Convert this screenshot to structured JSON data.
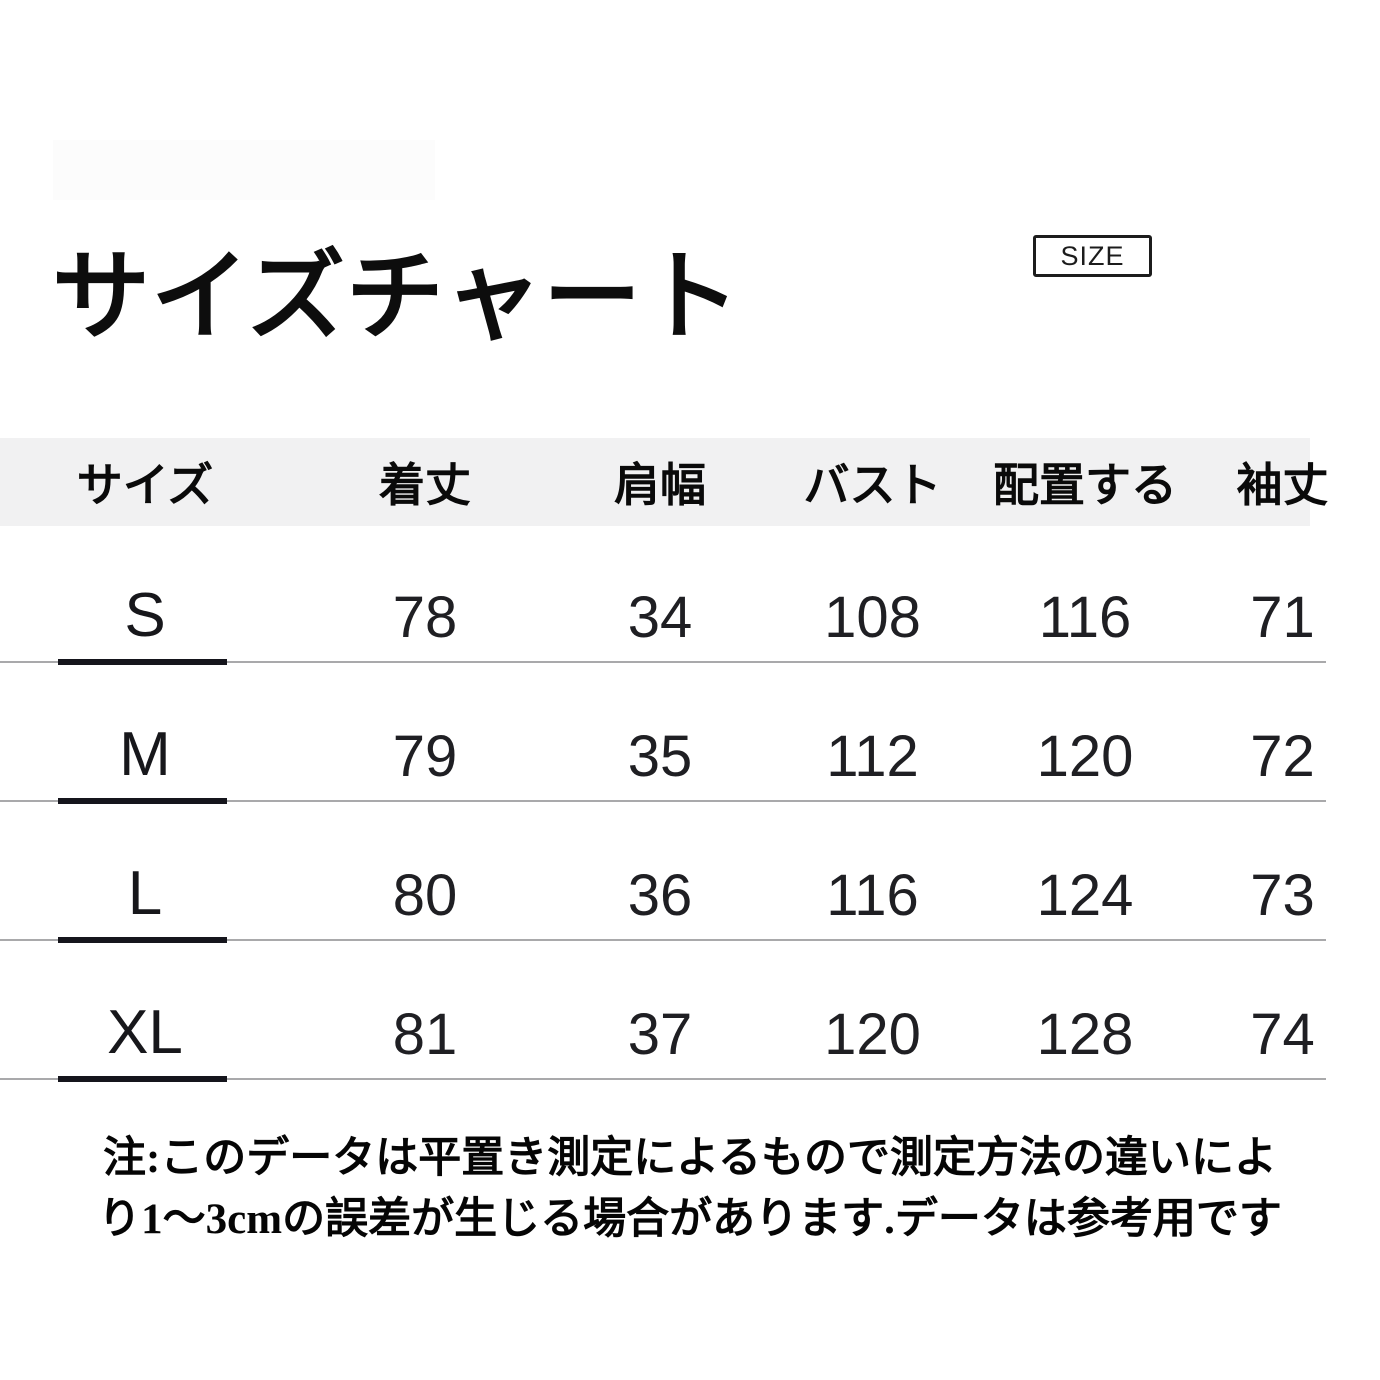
{
  "page": {
    "title": "サイズチャート",
    "size_badge_label": "SIZE"
  },
  "table": {
    "headers": [
      "サイズ",
      "着丈",
      "肩幅",
      "バスト",
      "配置する",
      "袖丈"
    ],
    "rows": [
      {
        "size": "S",
        "values": [
          "78",
          "34",
          "108",
          "116",
          "71"
        ]
      },
      {
        "size": "M",
        "values": [
          "79",
          "35",
          "112",
          "120",
          "72"
        ]
      },
      {
        "size": "L",
        "values": [
          "80",
          "36",
          "116",
          "124",
          "73"
        ]
      },
      {
        "size": "XL",
        "values": [
          "81",
          "37",
          "120",
          "128",
          "74"
        ]
      }
    ]
  },
  "note": {
    "line1": "注:このデータは平置き測定によるもので測定方法の違いによ",
    "line2": "り1〜3cmの誤差が生じる場合があります.データは参考用です"
  },
  "colors": {
    "background": "#ffffff",
    "header_band": "#f1f1f2",
    "divider_line": "#a9a9ab",
    "divider_tick": "#15151c",
    "text": "#111111"
  }
}
